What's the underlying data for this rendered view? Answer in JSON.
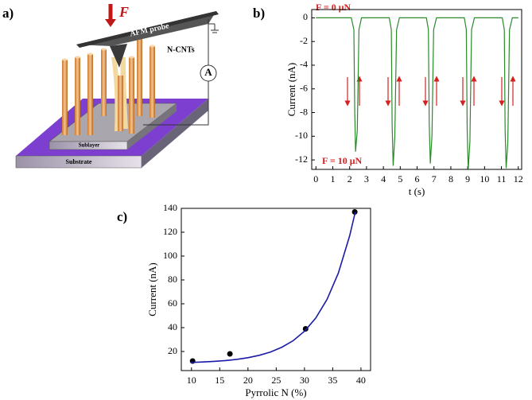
{
  "panel_labels": [
    "a)",
    "b)",
    "c)"
  ],
  "diagram": {
    "force": "F",
    "probe": "AFM probe",
    "nanotubes": "N-CNTs",
    "meter": "A",
    "sublayer": "Sublayer",
    "substrate": "Substrate"
  },
  "chart_data": [
    {
      "type": "line",
      "x_label": "t (s)",
      "y_label": "Current (nA)",
      "color": "#2a8a2a",
      "annotations": [
        "F = 0 μN",
        "F = 10 μN"
      ],
      "x": [
        0,
        2.1,
        2.25,
        2.3,
        2.35,
        2.45,
        2.55,
        2.7,
        4.35,
        4.47,
        4.52,
        4.58,
        4.68,
        4.78,
        4.95,
        6.55,
        6.67,
        6.72,
        6.78,
        6.88,
        6.98,
        7.15,
        8.8,
        8.92,
        8.97,
        9.03,
        9.13,
        9.23,
        9.4,
        11.05,
        11.17,
        11.22,
        11.28,
        11.38,
        11.48,
        11.65,
        12
      ],
      "values": [
        0,
        0,
        -1,
        -8,
        -11.3,
        -9.5,
        -1,
        0,
        0,
        -1,
        -9,
        -12.5,
        -10,
        -1,
        0,
        0,
        -1,
        -9,
        -12.3,
        -10,
        -1,
        0,
        0,
        -1,
        -9.5,
        -12.8,
        -10.5,
        -1,
        0,
        0,
        -1,
        -9.5,
        -12.7,
        -10.5,
        -1,
        0,
        0
      ],
      "xlim": [
        -0.25,
        12.2
      ],
      "ylim": [
        -12.8,
        0.7
      ],
      "xticks": [
        0,
        1,
        2,
        3,
        4,
        5,
        6,
        7,
        8,
        9,
        10,
        11,
        12
      ],
      "yticks": [
        0,
        -2,
        -4,
        -6,
        -8,
        -10,
        -12
      ]
    },
    {
      "type": "scatter",
      "x_label": "Pyrrolic N (%)",
      "y_label": "Current (nA)",
      "series": [
        {
          "mode": "markers",
          "color": "#000000",
          "x": [
            10.2,
            16.8,
            30.2,
            38.9
          ],
          "values": [
            12,
            18,
            39,
            137
          ]
        },
        {
          "mode": "line",
          "color": "#1a1aa8",
          "x": [
            9.8,
            12,
            14,
            16,
            18,
            20,
            22,
            24,
            26,
            28,
            30,
            32,
            34,
            36,
            38,
            39
          ],
          "values": [
            10.8,
            11.2,
            11.7,
            12.4,
            13.4,
            14.8,
            16.8,
            19.6,
            23.6,
            29.1,
            37,
            48.1,
            63.7,
            85.8,
            117,
            137
          ]
        }
      ],
      "xlim": [
        8.2,
        41.7
      ],
      "ylim": [
        4,
        140
      ],
      "xticks": [
        10,
        15,
        20,
        25,
        30,
        35,
        40
      ],
      "yticks": [
        20,
        40,
        60,
        80,
        100,
        120,
        140
      ]
    }
  ]
}
